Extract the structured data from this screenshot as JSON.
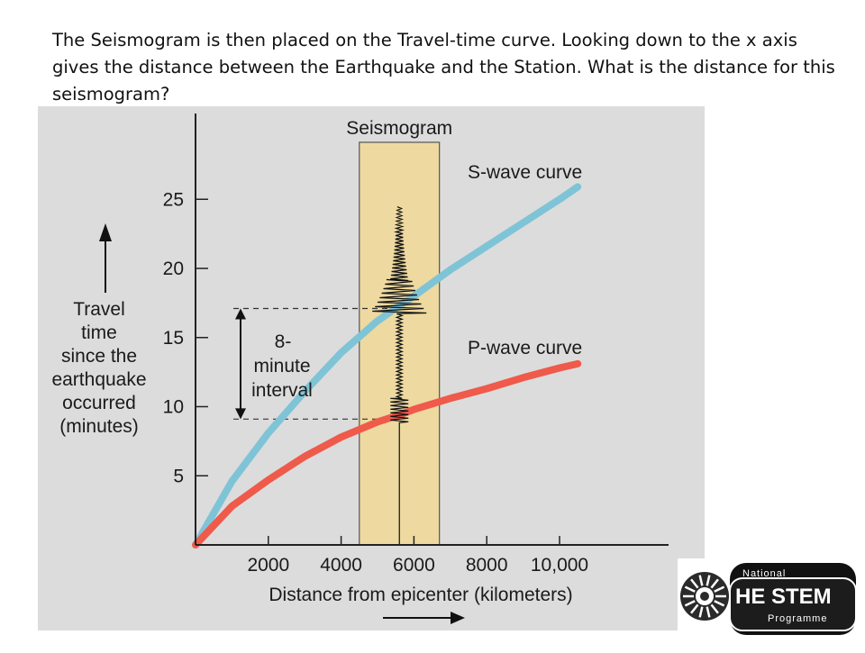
{
  "caption": "The Seismogram is then placed on the Travel-time curve.  Looking down to the x axis gives the distance between the Earthquake and the Station. What is the distance for this seismogram?",
  "colors": {
    "background": "#dcdcdc",
    "s_wave": "#7ec4d6",
    "p_wave": "#ef5a4a",
    "seismogram_band": "#eed9a0"
  },
  "chart_data": {
    "type": "line",
    "xlabel": "Distance from epicenter (kilometers)",
    "ylabel_lines": [
      "Travel",
      "time",
      "since the",
      "earthquake",
      "occurred",
      "(minutes)"
    ],
    "xlim": [
      0,
      10500
    ],
    "ylim": [
      0,
      28
    ],
    "x_ticks": [
      "2000",
      "4000",
      "6000",
      "8000",
      "10,000"
    ],
    "x_tick_values": [
      2000,
      4000,
      6000,
      8000,
      10000
    ],
    "y_ticks": [
      "5",
      "10",
      "15",
      "20",
      "25"
    ],
    "y_tick_values": [
      5,
      10,
      15,
      20,
      25
    ],
    "series": [
      {
        "name": "S-wave curve",
        "x": [
          0,
          1000,
          2000,
          3000,
          4000,
          5000,
          5600,
          6000,
          7000,
          8000,
          9000,
          10000,
          10500
        ],
        "y": [
          0,
          4.6,
          8.1,
          11.1,
          13.9,
          16.2,
          17.3,
          18.0,
          19.9,
          21.6,
          23.3,
          25.0,
          25.9
        ]
      },
      {
        "name": "P-wave curve",
        "x": [
          0,
          1000,
          2000,
          3000,
          4000,
          5000,
          5600,
          6000,
          7000,
          8000,
          9000,
          10000,
          10500
        ],
        "y": [
          0,
          2.8,
          4.7,
          6.4,
          7.8,
          8.9,
          9.4,
          9.8,
          10.6,
          11.3,
          12.1,
          12.8,
          13.1
        ]
      }
    ],
    "seismogram": {
      "label": "Seismogram",
      "x_range": [
        4500,
        6700
      ],
      "station_distance": 5600,
      "p_arrival": 9.1,
      "s_arrival": 17.1
    },
    "annotation": [
      "8-",
      "minute",
      "interval"
    ],
    "annotation_minutes": [
      9.1,
      17.1
    ]
  },
  "logo": {
    "line1": "National",
    "line2": "HE STEM",
    "line3": "Programme"
  }
}
